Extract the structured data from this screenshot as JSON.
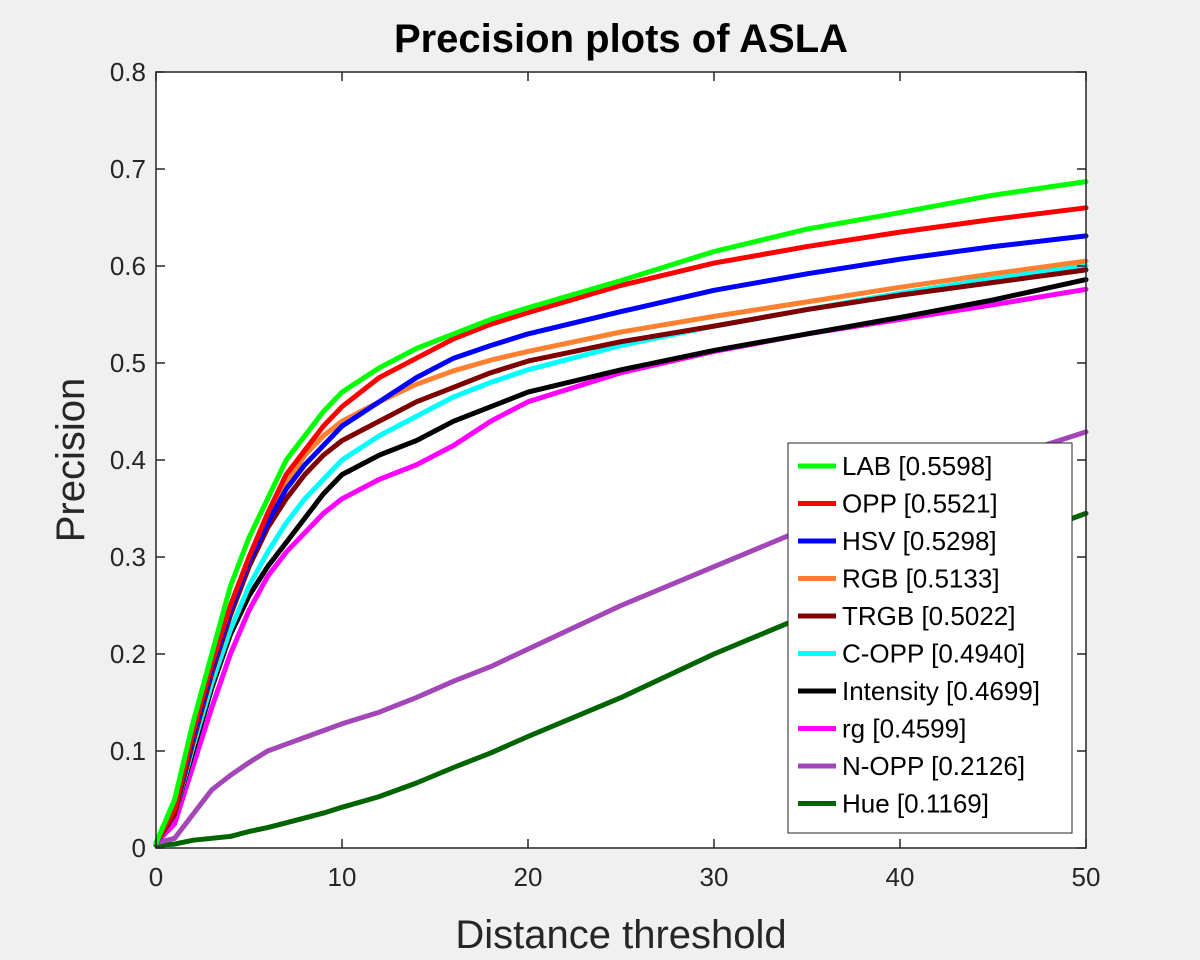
{
  "chart_data": {
    "type": "line",
    "title": "Precision plots of ASLA",
    "xlabel": "Distance threshold",
    "ylabel": "Precision",
    "xlim": [
      0,
      50
    ],
    "ylim": [
      0,
      0.8
    ],
    "xticks": [
      "0",
      "10",
      "20",
      "30",
      "40",
      "50"
    ],
    "yticks": [
      "0",
      "0.1",
      "0.2",
      "0.3",
      "0.4",
      "0.5",
      "0.6",
      "0.7",
      "0.8"
    ],
    "grid": false,
    "legend_position": "bottom-right",
    "x": [
      0,
      1,
      2,
      3,
      4,
      5,
      6,
      7,
      8,
      9,
      10,
      12,
      14,
      16,
      18,
      20,
      25,
      30,
      35,
      40,
      45,
      50
    ],
    "series": [
      {
        "name": "LAB [0.5598]",
        "color": "#00ff00",
        "values": [
          0.005,
          0.05,
          0.13,
          0.2,
          0.27,
          0.32,
          0.36,
          0.4,
          0.425,
          0.45,
          0.47,
          0.495,
          0.515,
          0.53,
          0.545,
          0.557,
          0.585,
          0.615,
          0.638,
          0.655,
          0.673,
          0.687
        ]
      },
      {
        "name": "OPP [0.5521]",
        "color": "#ff0000",
        "values": [
          0.005,
          0.04,
          0.12,
          0.19,
          0.25,
          0.3,
          0.345,
          0.385,
          0.41,
          0.435,
          0.455,
          0.485,
          0.505,
          0.525,
          0.54,
          0.552,
          0.58,
          0.603,
          0.62,
          0.635,
          0.648,
          0.66
        ]
      },
      {
        "name": "HSV [0.5298]",
        "color": "#0000ff",
        "values": [
          0.005,
          0.04,
          0.115,
          0.185,
          0.245,
          0.295,
          0.335,
          0.37,
          0.395,
          0.415,
          0.435,
          0.46,
          0.485,
          0.505,
          0.518,
          0.53,
          0.553,
          0.575,
          0.592,
          0.607,
          0.62,
          0.631
        ]
      },
      {
        "name": "RGB [0.5133]",
        "color": "#ff8030",
        "values": [
          0.005,
          0.04,
          0.115,
          0.185,
          0.245,
          0.295,
          0.34,
          0.375,
          0.405,
          0.425,
          0.44,
          0.46,
          0.478,
          0.492,
          0.503,
          0.512,
          0.532,
          0.548,
          0.563,
          0.578,
          0.592,
          0.605
        ]
      },
      {
        "name": "TRGB [0.5022]",
        "color": "#7f0000",
        "values": [
          0.005,
          0.035,
          0.11,
          0.18,
          0.24,
          0.29,
          0.33,
          0.36,
          0.385,
          0.405,
          0.42,
          0.44,
          0.46,
          0.475,
          0.49,
          0.502,
          0.522,
          0.538,
          0.555,
          0.57,
          0.583,
          0.596
        ]
      },
      {
        "name": "C-OPP [0.4940]",
        "color": "#00ffff",
        "values": [
          0.005,
          0.035,
          0.105,
          0.17,
          0.225,
          0.27,
          0.305,
          0.335,
          0.36,
          0.38,
          0.4,
          0.425,
          0.445,
          0.465,
          0.48,
          0.493,
          0.518,
          0.538,
          0.555,
          0.572,
          0.587,
          0.6
        ]
      },
      {
        "name": "Intensity [0.4699]",
        "color": "#000000",
        "values": [
          0.005,
          0.035,
          0.1,
          0.165,
          0.22,
          0.26,
          0.29,
          0.315,
          0.34,
          0.365,
          0.385,
          0.405,
          0.42,
          0.44,
          0.455,
          0.47,
          0.493,
          0.513,
          0.53,
          0.547,
          0.565,
          0.586
        ]
      },
      {
        "name": "rg [0.4599]",
        "color": "#ff00ff",
        "values": [
          0.005,
          0.025,
          0.085,
          0.145,
          0.2,
          0.245,
          0.28,
          0.305,
          0.325,
          0.345,
          0.36,
          0.38,
          0.395,
          0.415,
          0.44,
          0.46,
          0.49,
          0.512,
          0.53,
          0.545,
          0.56,
          0.576
        ]
      },
      {
        "name": "N-OPP [0.2126]",
        "color": "#a347b8",
        "values": [
          0.005,
          0.01,
          0.035,
          0.06,
          0.075,
          0.088,
          0.1,
          0.107,
          0.114,
          0.121,
          0.128,
          0.14,
          0.155,
          0.172,
          0.187,
          0.205,
          0.25,
          0.29,
          0.33,
          0.365,
          0.398,
          0.429
        ]
      },
      {
        "name": "Hue [0.1169]",
        "color": "#006400",
        "values": [
          0.003,
          0.004,
          0.008,
          0.01,
          0.012,
          0.017,
          0.021,
          0.026,
          0.031,
          0.036,
          0.042,
          0.053,
          0.067,
          0.083,
          0.098,
          0.115,
          0.155,
          0.2,
          0.24,
          0.277,
          0.31,
          0.345
        ]
      }
    ]
  }
}
